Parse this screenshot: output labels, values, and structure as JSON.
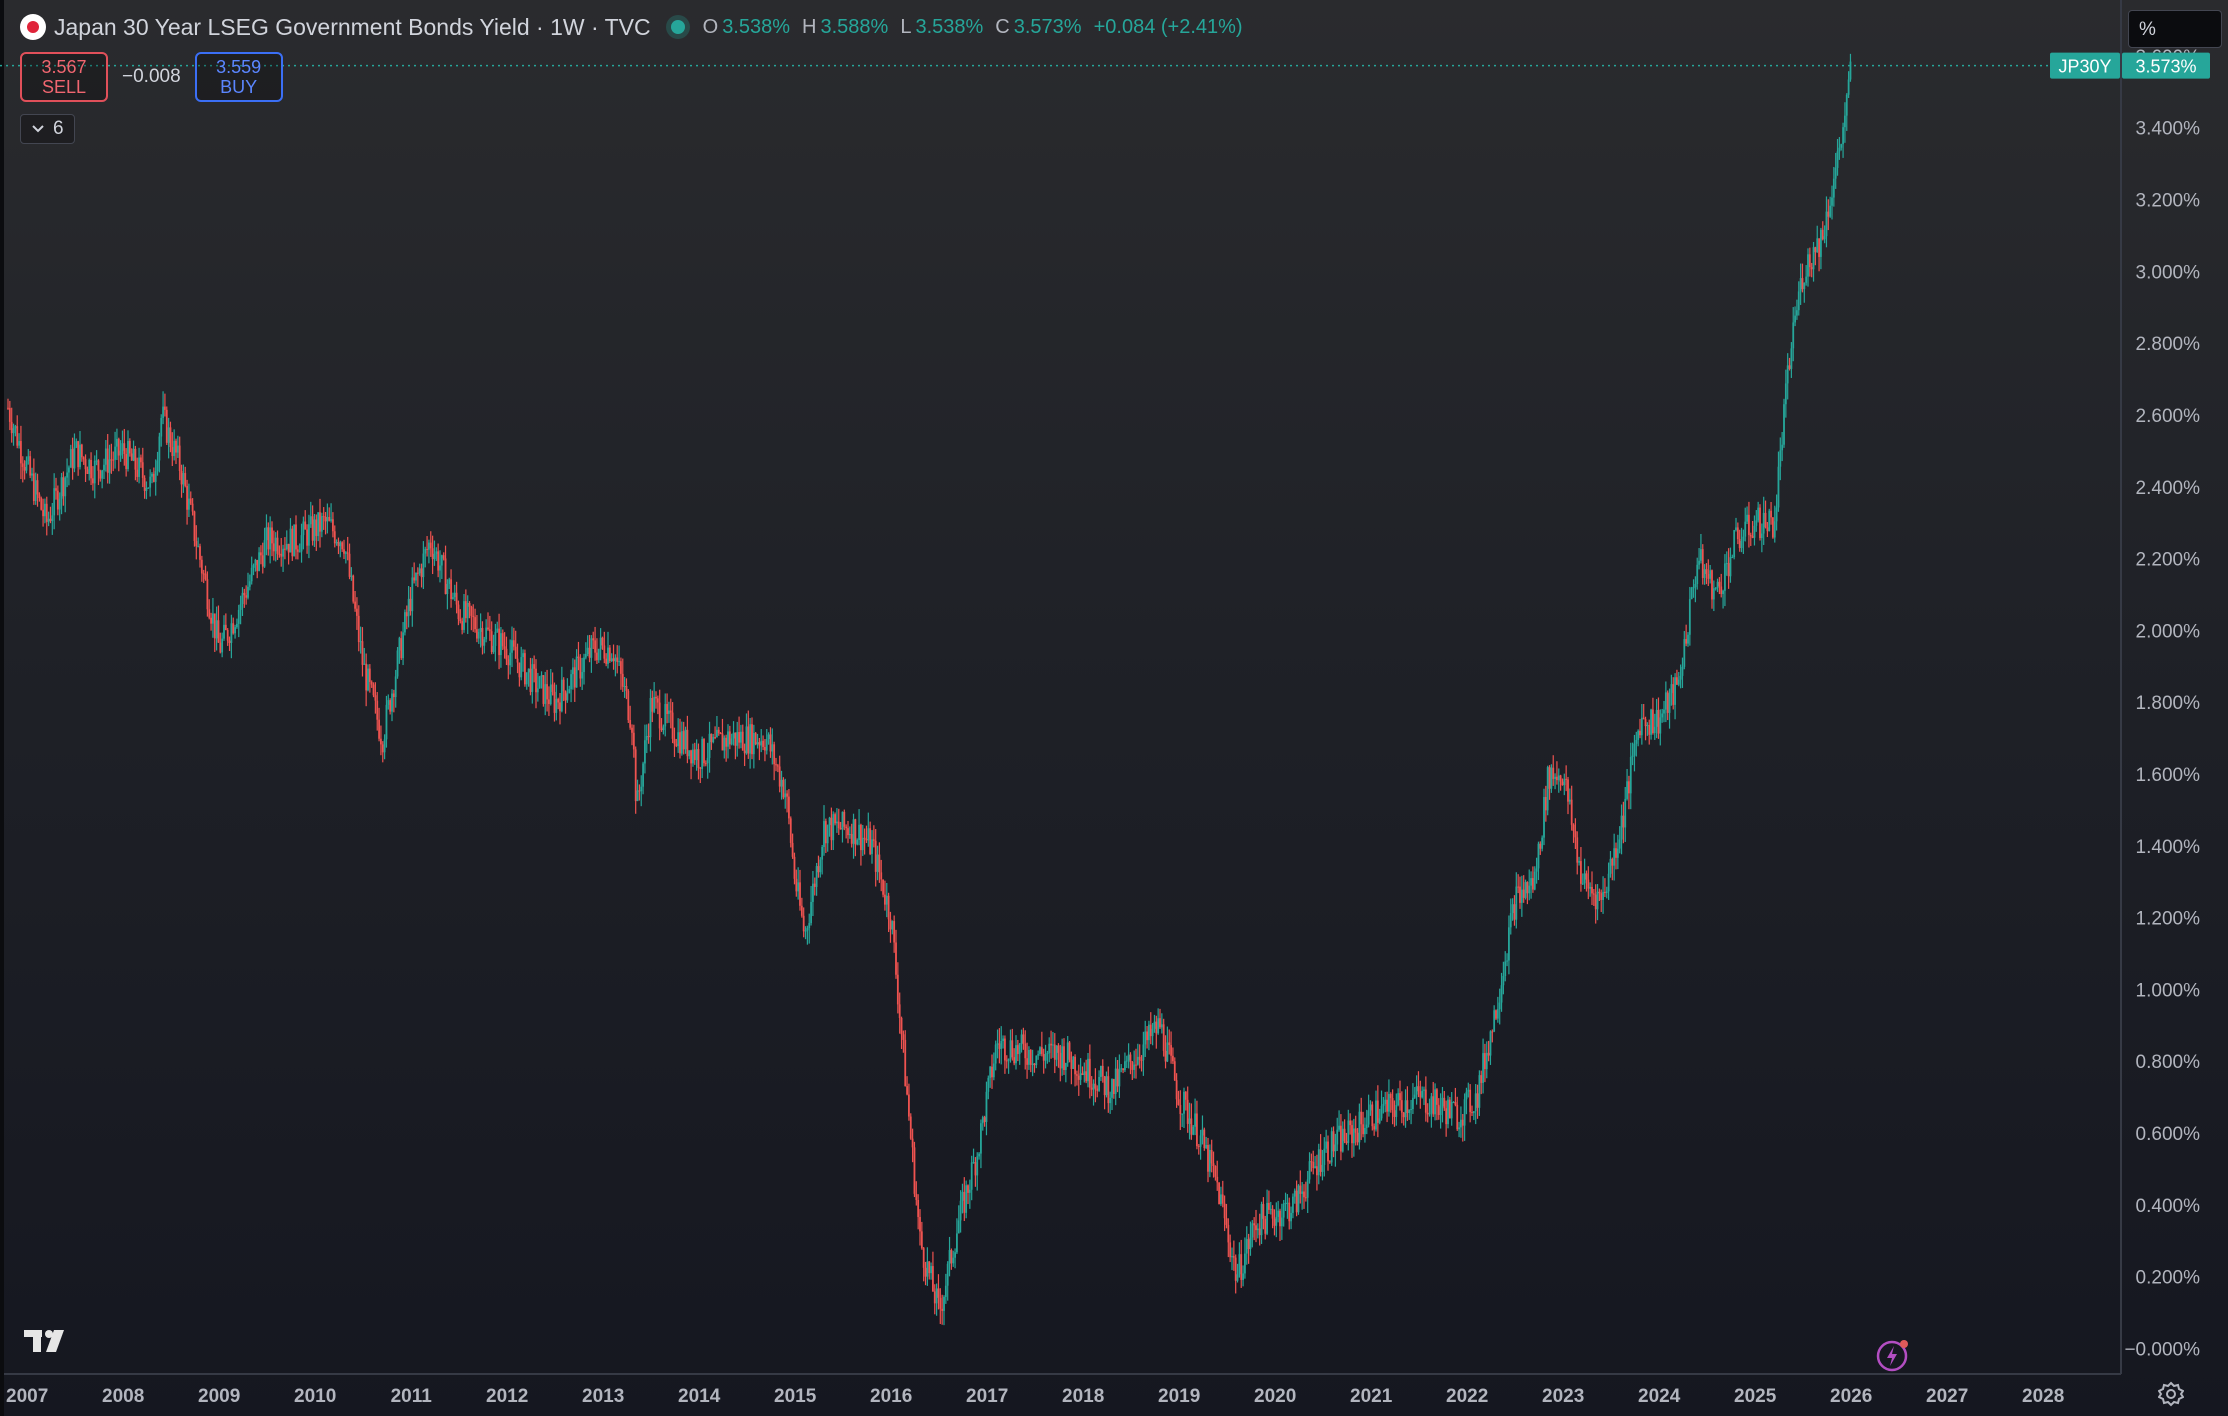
{
  "header": {
    "symbol_title": "Japan 30 Year LSEG Government Bonds Yield · 1W · TVC",
    "ohlc": {
      "o_label": "O",
      "o_value": "3.538%",
      "h_label": "H",
      "h_value": "3.588%",
      "l_label": "L",
      "l_value": "3.538%",
      "c_label": "C",
      "c_value": "3.573%",
      "change": "+0.084 (+2.41%)"
    }
  },
  "trade": {
    "sell_price": "3.567",
    "sell_label": "SELL",
    "spread": "−0.008",
    "buy_price": "3.559",
    "buy_label": "BUY"
  },
  "indicators_toggle": {
    "count": "6"
  },
  "scale_mode": {
    "label": "%"
  },
  "price_tag": {
    "symbol": "JP30Y",
    "value": "3.573%"
  },
  "colors": {
    "up": "#26a69a",
    "down": "#ef5350",
    "text": "#d1d4dc",
    "axis_text": "#b2b5be",
    "sell": "#f06670",
    "buy": "#5b86ff"
  },
  "chart_data": {
    "type": "candlestick",
    "title": "Japan 30 Year LSEG Government Bonds Yield · 1W · TVC",
    "xlabel": "",
    "ylabel": "",
    "x_ticks": [
      "2007",
      "2008",
      "2009",
      "2010",
      "2011",
      "2012",
      "2013",
      "2014",
      "2015",
      "2016",
      "2017",
      "2018",
      "2019",
      "2020",
      "2021",
      "2022",
      "2023",
      "2024",
      "2025",
      "2026",
      "2027",
      "2028"
    ],
    "y_ticks": [
      "−0.000%",
      "0.200%",
      "0.400%",
      "0.600%",
      "0.800%",
      "1.000%",
      "1.200%",
      "1.400%",
      "1.600%",
      "1.800%",
      "2.000%",
      "2.200%",
      "2.400%",
      "2.600%",
      "2.800%",
      "3.000%",
      "3.200%",
      "3.400%",
      "3.600%"
    ],
    "x_range": [
      2006.8,
      2028.8
    ],
    "y_range": [
      -0.06,
      3.7
    ],
    "grid": false,
    "last_value": 3.573,
    "series": [
      {
        "values_approx": [
          [
            2006.8,
            2.62
          ],
          [
            2007.0,
            2.45
          ],
          [
            2007.2,
            2.3
          ],
          [
            2007.5,
            2.5
          ],
          [
            2007.7,
            2.45
          ],
          [
            2008.0,
            2.5
          ],
          [
            2008.3,
            2.4
          ],
          [
            2008.4,
            2.6
          ],
          [
            2008.6,
            2.45
          ],
          [
            2009.0,
            1.95
          ],
          [
            2009.1,
            2.0
          ],
          [
            2009.5,
            2.25
          ],
          [
            2009.8,
            2.25
          ],
          [
            2010.1,
            2.3
          ],
          [
            2010.3,
            2.25
          ],
          [
            2010.5,
            1.9
          ],
          [
            2010.7,
            1.7
          ],
          [
            2011.0,
            2.1
          ],
          [
            2011.2,
            2.25
          ],
          [
            2011.5,
            2.05
          ],
          [
            2012.0,
            1.95
          ],
          [
            2012.3,
            1.85
          ],
          [
            2012.5,
            1.8
          ],
          [
            2012.9,
            1.95
          ],
          [
            2013.1,
            1.95
          ],
          [
            2013.3,
            1.75
          ],
          [
            2013.35,
            1.5
          ],
          [
            2013.5,
            1.8
          ],
          [
            2013.8,
            1.7
          ],
          [
            2014.0,
            1.65
          ],
          [
            2014.3,
            1.7
          ],
          [
            2014.7,
            1.7
          ],
          [
            2014.9,
            1.55
          ],
          [
            2015.0,
            1.3
          ],
          [
            2015.1,
            1.15
          ],
          [
            2015.3,
            1.45
          ],
          [
            2015.6,
            1.45
          ],
          [
            2015.8,
            1.4
          ],
          [
            2016.0,
            1.2
          ],
          [
            2016.2,
            0.6
          ],
          [
            2016.3,
            0.3
          ],
          [
            2016.5,
            0.1
          ],
          [
            2016.7,
            0.35
          ],
          [
            2016.9,
            0.55
          ],
          [
            2017.1,
            0.85
          ],
          [
            2017.5,
            0.82
          ],
          [
            2017.8,
            0.82
          ],
          [
            2018.0,
            0.78
          ],
          [
            2018.3,
            0.72
          ],
          [
            2018.5,
            0.8
          ],
          [
            2018.8,
            0.9
          ],
          [
            2019.0,
            0.7
          ],
          [
            2019.2,
            0.6
          ],
          [
            2019.4,
            0.45
          ],
          [
            2019.6,
            0.2
          ],
          [
            2019.8,
            0.35
          ],
          [
            2020.2,
            0.4
          ],
          [
            2020.5,
            0.55
          ],
          [
            2020.8,
            0.6
          ],
          [
            2021.0,
            0.65
          ],
          [
            2021.5,
            0.7
          ],
          [
            2021.9,
            0.65
          ],
          [
            2022.1,
            0.7
          ],
          [
            2022.3,
            0.95
          ],
          [
            2022.5,
            1.25
          ],
          [
            2022.7,
            1.3
          ],
          [
            2022.85,
            1.6
          ],
          [
            2023.0,
            1.6
          ],
          [
            2023.2,
            1.3
          ],
          [
            2023.4,
            1.25
          ],
          [
            2023.6,
            1.45
          ],
          [
            2023.8,
            1.75
          ],
          [
            2024.0,
            1.75
          ],
          [
            2024.2,
            1.85
          ],
          [
            2024.4,
            2.2
          ],
          [
            2024.6,
            2.1
          ],
          [
            2024.8,
            2.25
          ],
          [
            2025.0,
            2.3
          ],
          [
            2025.2,
            2.3
          ],
          [
            2025.3,
            2.6
          ],
          [
            2025.4,
            2.85
          ],
          [
            2025.5,
            3.0
          ],
          [
            2025.7,
            3.1
          ],
          [
            2025.85,
            3.3
          ],
          [
            2025.95,
            3.45
          ],
          [
            2026.0,
            3.573
          ]
        ]
      }
    ]
  }
}
